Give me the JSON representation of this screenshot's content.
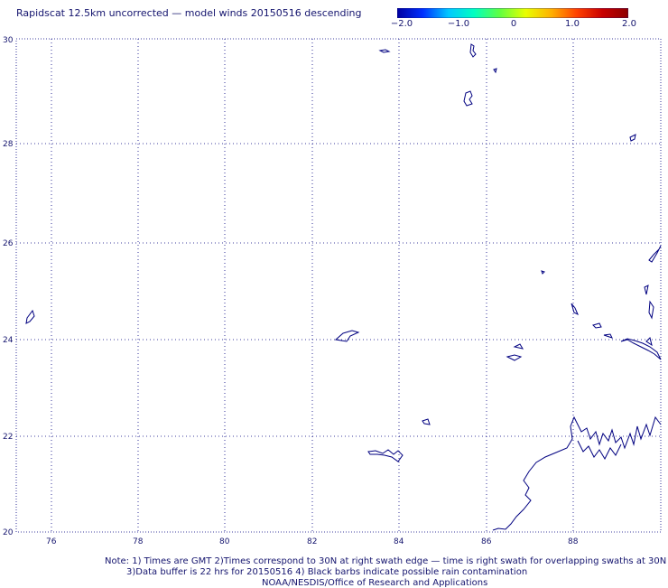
{
  "title": "Rapidscat 12.5km uncorrected — model winds 20150516 descending",
  "colorbar": {
    "ticks": [
      "−2.0",
      "−1.0",
      "0",
      "1.0",
      "2.0"
    ],
    "colors": [
      "#0000a0",
      "#0030ff",
      "#00c8ff",
      "#00ffc0",
      "#60ff40",
      "#e8ff00",
      "#ffb000",
      "#ff4000",
      "#c80000",
      "#8c0000"
    ]
  },
  "map": {
    "lat_labels": [
      "30",
      "28",
      "26",
      "24",
      "22",
      "20"
    ],
    "lon_labels": [
      "76",
      "78",
      "80",
      "82",
      "84",
      "86",
      "88"
    ],
    "coastline_color": "#000080",
    "grid_color": "#000080"
  },
  "notes": {
    "line1": "Note: 1) Times are GMT 2)Times correspond to 30N at right swath edge — time is right swath for overlapping swaths at 30N",
    "line2": "3)Data buffer is 22 hrs for 20150516 4) Black barbs indicate possible rain contamination",
    "line3": "NOAA/NESDIS/Office of Research and Applications"
  }
}
